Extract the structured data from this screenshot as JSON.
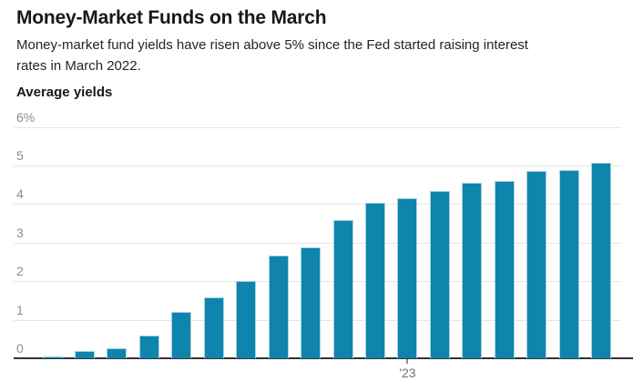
{
  "header": {
    "title": "Money-Market Funds on the March",
    "subtitle_lines": [
      "Money-market fund yields have risen above 5% since the Fed started raising interest",
      "rates in March 2022."
    ],
    "axis_heading": "Average yields"
  },
  "chart_data": {
    "type": "bar",
    "title": "Money-Market Funds on the March",
    "subtitle": "Money-market fund yields have risen above 5% since the Fed started raising interest rates in March 2022.",
    "series_label": "Average yields",
    "y_unit": "%",
    "ylim": [
      0,
      6
    ],
    "grid": true,
    "n_bars": 18,
    "values": [
      0.05,
      0.18,
      0.25,
      0.6,
      1.21,
      1.58,
      2.01,
      2.66,
      2.87,
      3.58,
      4.04,
      4.14,
      4.35,
      4.56,
      4.59,
      4.86,
      4.89,
      5.06
    ],
    "yticks": [
      {
        "value": 6,
        "label": "6%"
      },
      {
        "value": 5,
        "label": "5"
      },
      {
        "value": 4,
        "label": "4"
      },
      {
        "value": 3,
        "label": "3"
      },
      {
        "value": 2,
        "label": "2"
      },
      {
        "value": 1,
        "label": "1"
      },
      {
        "value": 0,
        "label": "0"
      }
    ],
    "x_tick": {
      "bar_index": 11,
      "label": "'23"
    },
    "colors": {
      "bar_fill": "#0f84ad",
      "bar_edge": "#a9d3e1",
      "gridline": "#e5e5e5",
      "axis_line": "#333333",
      "y_tick_label": "#8c8c8c",
      "x_tick_label": "#6e7275",
      "title": "#13191d"
    }
  }
}
